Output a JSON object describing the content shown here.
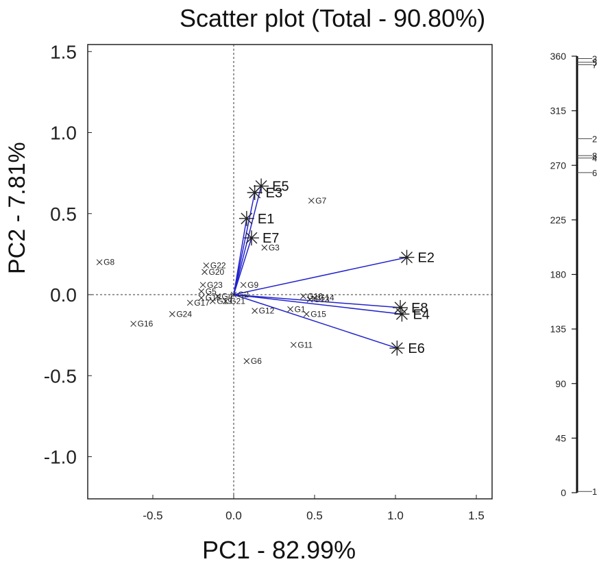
{
  "chart_data": {
    "type": "scatter",
    "title": "Scatter plot (Total - 90.80%)",
    "xlabel": "PC1 - 82.99%",
    "ylabel": "PC2 - 7.81%",
    "xlim": [
      -0.9,
      1.6
    ],
    "ylim": [
      -1.25,
      1.55
    ],
    "xticks": [
      "-0.5",
      "0.0",
      "0.5",
      "1.0",
      "1.5"
    ],
    "yticks": [
      "-1.0",
      "-0.5",
      "0.0",
      "0.5",
      "1.0",
      "1.5"
    ],
    "xtick_values": [
      -0.5,
      0,
      0.5,
      1.0,
      1.5
    ],
    "ytick_values": [
      -1.0,
      -0.5,
      0,
      0.5,
      1.0,
      1.5
    ],
    "environments": [
      {
        "label": "E1",
        "x": 0.08,
        "y": 0.47
      },
      {
        "label": "E2",
        "x": 1.07,
        "y": 0.23
      },
      {
        "label": "E3",
        "x": 0.13,
        "y": 0.63
      },
      {
        "label": "E4",
        "x": 1.04,
        "y": -0.12
      },
      {
        "label": "E5",
        "x": 0.17,
        "y": 0.67
      },
      {
        "label": "E6",
        "x": 1.01,
        "y": -0.33
      },
      {
        "label": "E7",
        "x": 0.11,
        "y": 0.35
      },
      {
        "label": "E8",
        "x": 1.03,
        "y": -0.08
      }
    ],
    "genotypes": [
      {
        "label": "G1",
        "x": 0.35,
        "y": -0.09
      },
      {
        "label": "G2",
        "x": 0.0,
        "y": 0.0
      },
      {
        "label": "G3",
        "x": 0.19,
        "y": 0.29
      },
      {
        "label": "G4",
        "x": -0.1,
        "y": -0.01
      },
      {
        "label": "G5",
        "x": -0.2,
        "y": 0.02
      },
      {
        "label": "G6",
        "x": 0.08,
        "y": -0.41
      },
      {
        "label": "G7",
        "x": 0.48,
        "y": 0.58
      },
      {
        "label": "G8",
        "x": -0.83,
        "y": 0.2
      },
      {
        "label": "G9",
        "x": 0.06,
        "y": 0.06
      },
      {
        "label": "G10",
        "x": 0.43,
        "y": -0.01
      },
      {
        "label": "G11",
        "x": 0.37,
        "y": -0.31
      },
      {
        "label": "G12",
        "x": 0.13,
        "y": -0.1
      },
      {
        "label": "G13",
        "x": 0.47,
        "y": -0.03
      },
      {
        "label": "G14",
        "x": 0.5,
        "y": -0.02
      },
      {
        "label": "G15",
        "x": 0.45,
        "y": -0.12
      },
      {
        "label": "G16",
        "x": -0.62,
        "y": -0.18
      },
      {
        "label": "G17",
        "x": -0.27,
        "y": -0.05
      },
      {
        "label": "G18",
        "x": -0.2,
        "y": -0.02
      },
      {
        "label": "G19",
        "x": -0.13,
        "y": -0.04
      },
      {
        "label": "G20",
        "x": -0.18,
        "y": 0.14
      },
      {
        "label": "G21",
        "x": -0.05,
        "y": -0.04
      },
      {
        "label": "G22",
        "x": -0.17,
        "y": 0.18
      },
      {
        "label": "G23",
        "x": -0.19,
        "y": 0.06
      },
      {
        "label": "G24",
        "x": -0.38,
        "y": -0.12
      }
    ],
    "vector_color": "#2222cc",
    "marker_color": "#222222",
    "angle_scale": {
      "ticks": [
        "0",
        "45",
        "90",
        "135",
        "180",
        "225",
        "270",
        "315",
        "360"
      ],
      "tick_values": [
        0,
        45,
        90,
        135,
        180,
        225,
        270,
        315,
        360
      ],
      "markers": [
        {
          "label": "1",
          "angle": 1
        },
        {
          "label": "6",
          "angle": 264
        },
        {
          "label": "8",
          "angle": 278
        },
        {
          "label": "4",
          "angle": 276
        },
        {
          "label": "2",
          "angle": 292
        },
        {
          "label": "3",
          "angle": 358
        },
        {
          "label": "5",
          "angle": 355
        },
        {
          "label": "7",
          "angle": 353
        }
      ]
    }
  }
}
